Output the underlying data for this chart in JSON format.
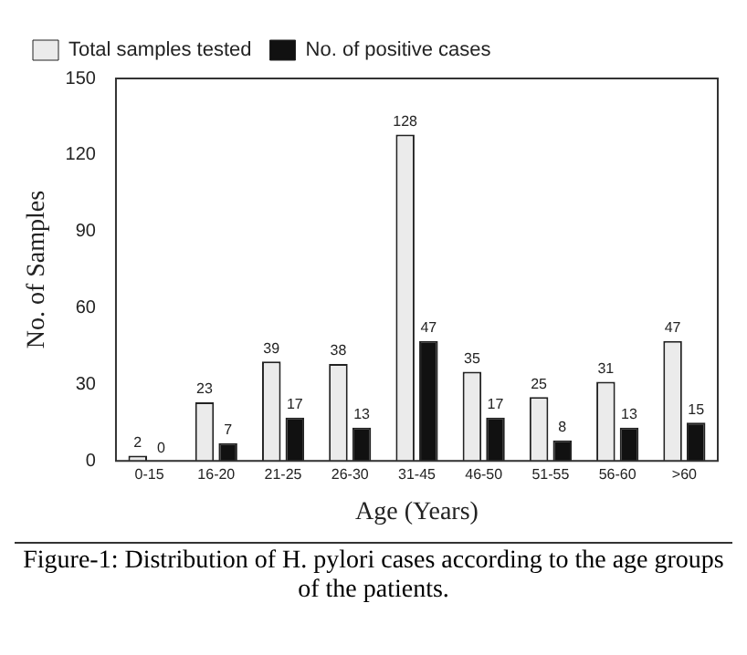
{
  "chart_data": {
    "type": "bar",
    "ylabel": "No. of Samples",
    "xlabel": "Age (Years)",
    "categories": [
      "0-15",
      "16-20",
      "21-25",
      "26-30",
      "31-45",
      "46-50",
      "51-55",
      "56-60",
      ">60"
    ],
    "series": [
      {
        "name": "Total samples tested",
        "color": "#ebebeb",
        "values": [
          2,
          23,
          39,
          38,
          128,
          35,
          25,
          31,
          47
        ]
      },
      {
        "name": "No. of positive cases",
        "color": "#111111",
        "values": [
          0,
          7,
          17,
          13,
          47,
          17,
          8,
          13,
          15
        ]
      }
    ],
    "ylim": [
      0,
      150
    ],
    "yticks": [
      0,
      30,
      60,
      90,
      120,
      150
    ],
    "grid": false,
    "legend": "top left",
    "data_labels": true,
    "annotations": [
      "Figure-1: Distribution of H. pylori cases according to the age groups of the patients."
    ]
  }
}
